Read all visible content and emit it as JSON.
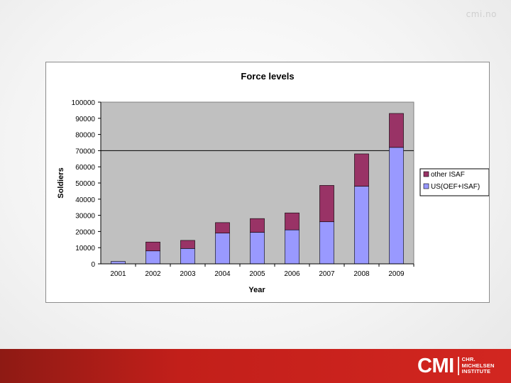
{
  "header": {
    "site_label": "cmi.no"
  },
  "logo": {
    "mark": "CMI",
    "lines": [
      "CHR.",
      "MICHELSEN",
      "INSTITUTE"
    ]
  },
  "chart_data": {
    "type": "bar",
    "stacked": true,
    "title": "Force levels",
    "xlabel": "Year",
    "ylabel": "Soldiers",
    "ylim": [
      0,
      100000
    ],
    "yticks": [
      0,
      10000,
      20000,
      30000,
      40000,
      50000,
      60000,
      70000,
      80000,
      90000,
      100000
    ],
    "grid": "horizontal at 70000",
    "legend": "right",
    "categories": [
      "2001",
      "2002",
      "2003",
      "2004",
      "2005",
      "2006",
      "2007",
      "2008",
      "2009"
    ],
    "series": [
      {
        "name": "US(OEF+ISAF)",
        "color": "#9999ff",
        "values": [
          1500,
          8000,
          9500,
          19000,
          19500,
          21000,
          26000,
          48000,
          72000
        ]
      },
      {
        "name": "other ISAF",
        "color": "#993366",
        "values": [
          0,
          5500,
          5000,
          6500,
          8500,
          10500,
          22500,
          20000,
          21000
        ]
      }
    ],
    "colors": {
      "plot_bg": "#c0c0c0",
      "axis": "#000000",
      "frame": "#8c8c8c"
    }
  }
}
